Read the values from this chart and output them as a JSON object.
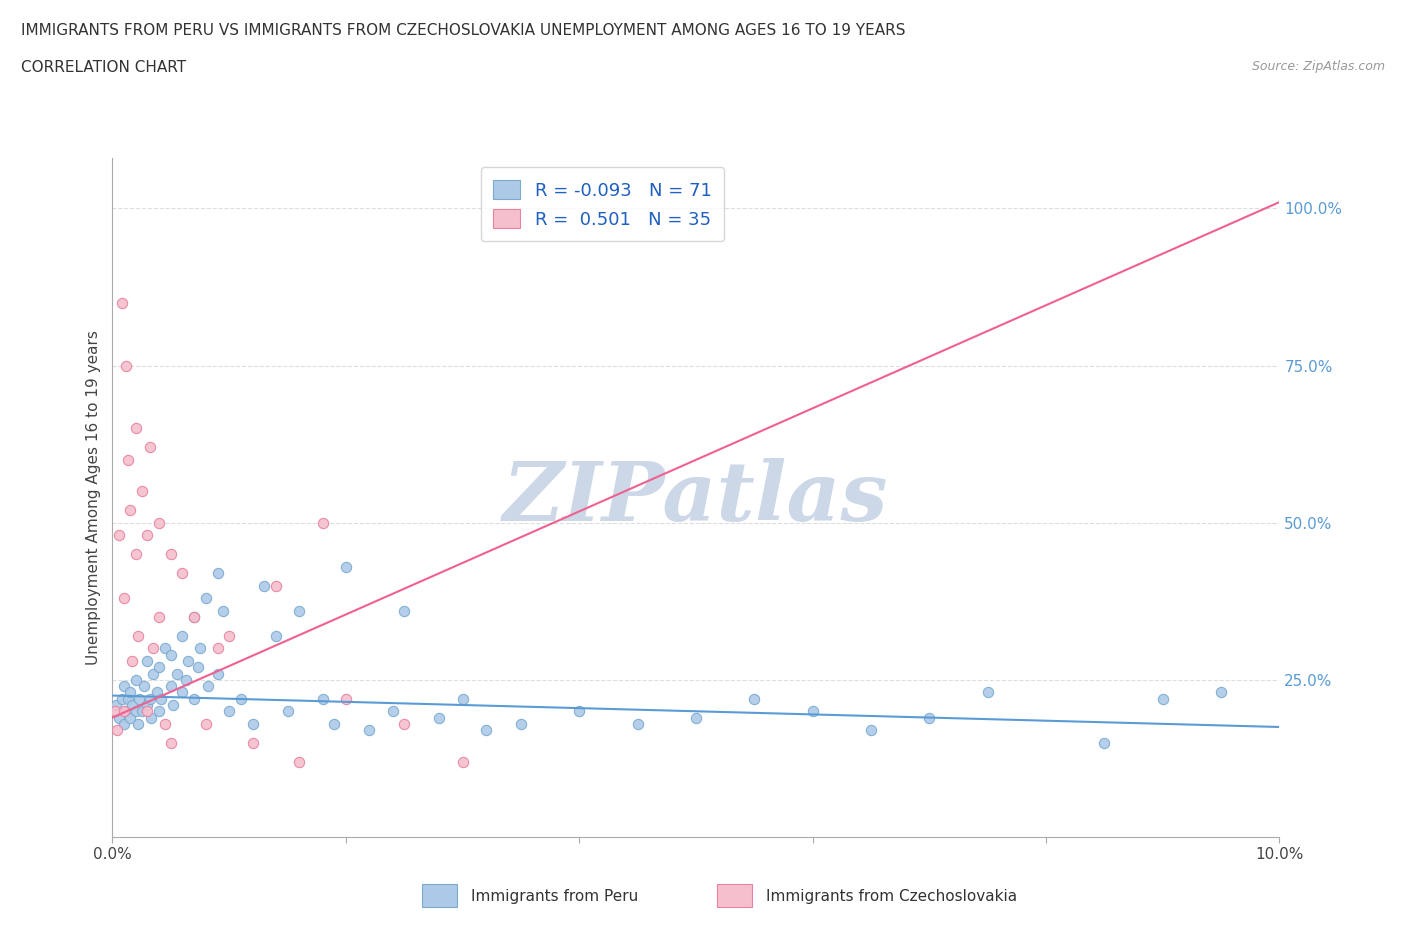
{
  "title_line1": "IMMIGRANTS FROM PERU VS IMMIGRANTS FROM CZECHOSLOVAKIA UNEMPLOYMENT AMONG AGES 16 TO 19 YEARS",
  "title_line2": "CORRELATION CHART",
  "source_text": "Source: ZipAtlas.com",
  "ylabel": "Unemployment Among Ages 16 to 19 years",
  "xlim": [
    0.0,
    0.1
  ],
  "ylim": [
    0.0,
    1.08
  ],
  "xticks": [
    0.0,
    0.02,
    0.04,
    0.06,
    0.08,
    0.1
  ],
  "xtick_labels": [
    "0.0%",
    "",
    "",
    "",
    "",
    "10.0%"
  ],
  "yticks_right": [
    0.25,
    0.5,
    0.75,
    1.0
  ],
  "ytick_labels_right": [
    "25.0%",
    "50.0%",
    "75.0%",
    "100.0%"
  ],
  "peru_color": "#adc9e8",
  "peru_edge_color": "#7aabcf",
  "czech_color": "#f5bfce",
  "czech_edge_color": "#e8829f",
  "peru_line_color": "#5b9bd5",
  "czech_line_color": "#f06090",
  "peru_R": -0.093,
  "peru_N": 71,
  "czech_R": 0.501,
  "czech_N": 35,
  "watermark_text": "ZIPatlas",
  "watermark_color": "#ccd8e8",
  "grid_color": "#dddddd",
  "background_color": "#ffffff",
  "peru_x": [
    0.0003,
    0.0006,
    0.0008,
    0.001,
    0.001,
    0.0012,
    0.0013,
    0.0015,
    0.0015,
    0.0017,
    0.002,
    0.002,
    0.0022,
    0.0023,
    0.0025,
    0.0027,
    0.003,
    0.003,
    0.0032,
    0.0033,
    0.0035,
    0.0038,
    0.004,
    0.004,
    0.0042,
    0.0045,
    0.005,
    0.005,
    0.0052,
    0.0055,
    0.006,
    0.006,
    0.0063,
    0.0065,
    0.007,
    0.007,
    0.0073,
    0.0075,
    0.008,
    0.0082,
    0.009,
    0.009,
    0.0095,
    0.01,
    0.011,
    0.012,
    0.013,
    0.014,
    0.015,
    0.016,
    0.018,
    0.019,
    0.02,
    0.022,
    0.024,
    0.025,
    0.028,
    0.03,
    0.032,
    0.035,
    0.04,
    0.045,
    0.05,
    0.055,
    0.06,
    0.065,
    0.07,
    0.075,
    0.085,
    0.09,
    0.095
  ],
  "peru_y": [
    0.21,
    0.19,
    0.22,
    0.18,
    0.24,
    0.2,
    0.22,
    0.19,
    0.23,
    0.21,
    0.2,
    0.25,
    0.18,
    0.22,
    0.2,
    0.24,
    0.21,
    0.28,
    0.22,
    0.19,
    0.26,
    0.23,
    0.2,
    0.27,
    0.22,
    0.3,
    0.24,
    0.29,
    0.21,
    0.26,
    0.23,
    0.32,
    0.25,
    0.28,
    0.22,
    0.35,
    0.27,
    0.3,
    0.38,
    0.24,
    0.42,
    0.26,
    0.36,
    0.2,
    0.22,
    0.18,
    0.4,
    0.32,
    0.2,
    0.36,
    0.22,
    0.18,
    0.43,
    0.17,
    0.2,
    0.36,
    0.19,
    0.22,
    0.17,
    0.18,
    0.2,
    0.18,
    0.19,
    0.22,
    0.2,
    0.17,
    0.19,
    0.23,
    0.15,
    0.22,
    0.23
  ],
  "czech_x": [
    0.0002,
    0.0004,
    0.0006,
    0.0008,
    0.001,
    0.001,
    0.0012,
    0.0013,
    0.0015,
    0.0017,
    0.002,
    0.002,
    0.0022,
    0.0025,
    0.003,
    0.003,
    0.0032,
    0.0035,
    0.004,
    0.004,
    0.0045,
    0.005,
    0.005,
    0.006,
    0.007,
    0.008,
    0.009,
    0.01,
    0.012,
    0.014,
    0.016,
    0.018,
    0.02,
    0.025,
    0.03
  ],
  "czech_y": [
    0.2,
    0.17,
    0.48,
    0.85,
    0.38,
    0.2,
    0.75,
    0.6,
    0.52,
    0.28,
    0.65,
    0.45,
    0.32,
    0.55,
    0.48,
    0.2,
    0.62,
    0.3,
    0.5,
    0.35,
    0.18,
    0.45,
    0.15,
    0.42,
    0.35,
    0.18,
    0.3,
    0.32,
    0.15,
    0.4,
    0.12,
    0.5,
    0.22,
    0.18,
    0.12
  ],
  "czech_line_x0": 0.0,
  "czech_line_y0": 0.19,
  "czech_line_x1": 0.1,
  "czech_line_y1": 1.01,
  "peru_line_x0": 0.0,
  "peru_line_y0": 0.225,
  "peru_line_x1": 0.1,
  "peru_line_y1": 0.175
}
